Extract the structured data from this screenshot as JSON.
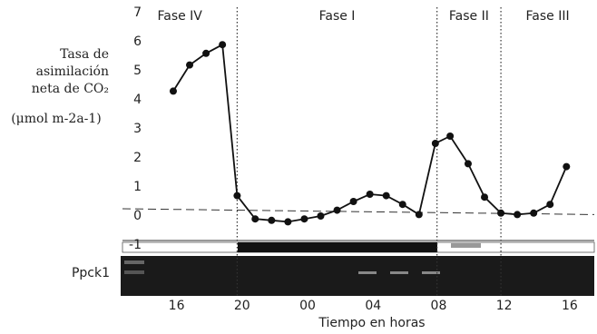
{
  "chart_data": {
    "type": "line",
    "ylabel": [
      "Tasa de",
      "asimilación",
      "neta de CO₂",
      "(μmol m-2a-1)"
    ],
    "xlabel": "Tiempo en horas",
    "x": [
      15.8,
      16.8,
      17.8,
      18.8,
      19.7,
      20.8,
      21.8,
      22.8,
      23.8,
      24.8,
      25.8,
      26.8,
      27.8,
      28.8,
      29.8,
      30.8,
      31.8,
      32.7,
      33.8,
      34.8,
      35.8,
      36.8,
      37.8,
      38.8,
      39.8
    ],
    "series": [
      {
        "color": "#111111",
        "values": [
          4.3,
          5.2,
          5.6,
          5.9,
          0.7,
          -0.1,
          -0.15,
          -0.2,
          -0.1,
          0,
          0.2,
          0.5,
          0.75,
          0.7,
          0.4,
          0.05,
          2.5,
          2.75,
          1.8,
          0.65,
          0.1,
          0.05,
          0.1,
          0.4,
          1.7
        ]
      }
    ],
    "reference_line": {
      "x": [
        12.7,
        41.5
      ],
      "values": [
        0.25,
        0.05
      ]
    },
    "phases": [
      {
        "label": "Fase IV",
        "start": 12.7,
        "end": 19.7
      },
      {
        "label": "Fase I",
        "start": 19.7,
        "end": 31.9
      },
      {
        "label": "Fase II",
        "start": 31.9,
        "end": 35.8
      },
      {
        "label": "Fase III",
        "start": 35.8,
        "end": 41.5
      }
    ],
    "gel_label": "Ppck1",
    "xlim": [
      12.7,
      41.5
    ],
    "ylim": [
      -1,
      7
    ],
    "yticks": [
      -1,
      0,
      1,
      2,
      3,
      4,
      5,
      6,
      7
    ],
    "xticks": [
      16,
      20,
      {
        "value": 24,
        "label": "00"
      },
      {
        "value": 28,
        "label": "04"
      },
      {
        "value": 32,
        "label": "08"
      },
      12,
      16
    ]
  }
}
